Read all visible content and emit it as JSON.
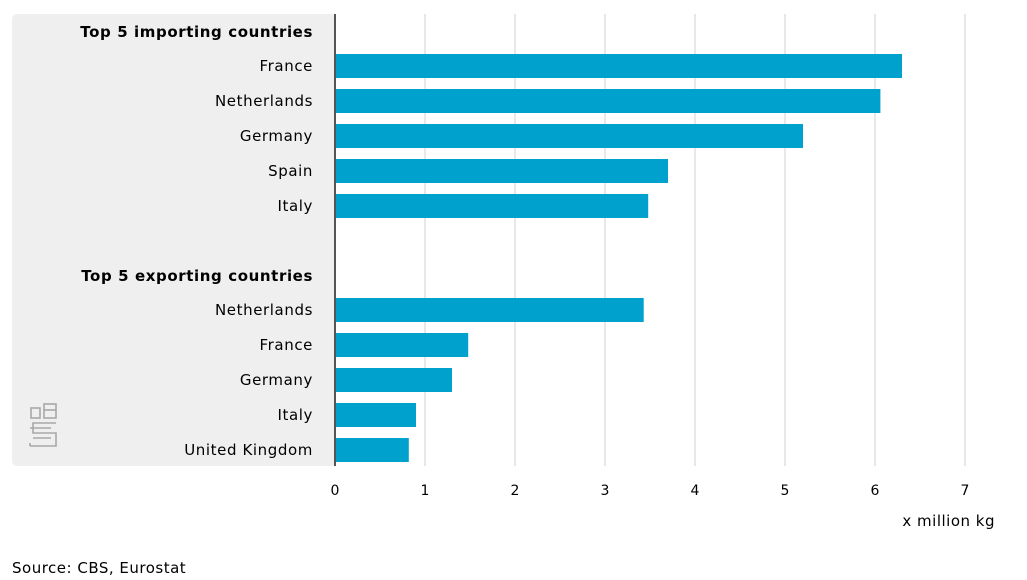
{
  "chart_data": {
    "type": "bar",
    "orientation": "horizontal",
    "groups": [
      {
        "title": "Top 5 importing countries",
        "categories": [
          "France",
          "Netherlands",
          "Germany",
          "Spain",
          "Italy"
        ],
        "values": [
          6.3,
          6.06,
          5.2,
          3.7,
          3.48
        ]
      },
      {
        "title": "Top 5 exporting countries",
        "categories": [
          "Netherlands",
          "France",
          "Germany",
          "Italy",
          "United Kingdom"
        ],
        "values": [
          3.43,
          1.48,
          1.3,
          0.9,
          0.82
        ]
      }
    ],
    "xlim": [
      0,
      7
    ],
    "xticks": [
      "0",
      "1",
      "2",
      "3",
      "4",
      "5",
      "6",
      "7"
    ],
    "xlabel": "x million kg",
    "grid": true,
    "bar_color": "#00a1cd"
  },
  "source": "Source: CBS, Eurostat",
  "logo": "cbs-logo-icon"
}
